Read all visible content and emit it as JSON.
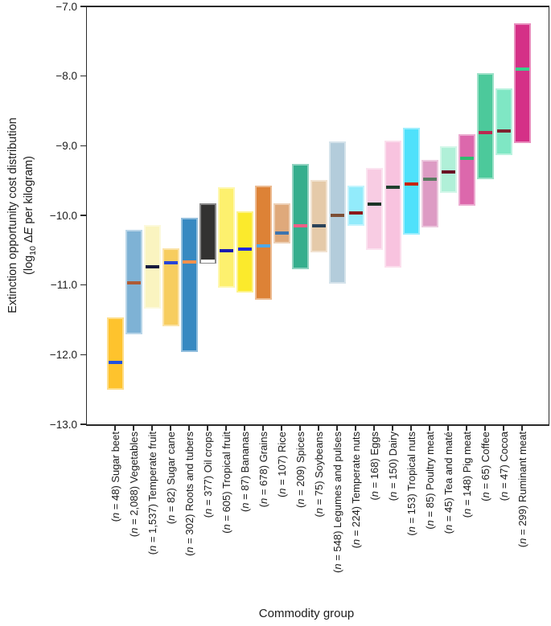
{
  "y_axis": {
    "title_line1": "Extinction opportunity cost distribution",
    "title_line2_segments": [
      {
        "t": "(log"
      },
      {
        "t": "10",
        "style": "sub"
      },
      {
        "t": " Δ"
      },
      {
        "t": "E",
        "style": "italic"
      },
      {
        "t": " per kilogram)"
      }
    ],
    "ticks": [
      {
        "label": "−7.0",
        "value": -7.0
      },
      {
        "label": "−8.0",
        "value": -8.0
      },
      {
        "label": "−9.0",
        "value": -9.0
      },
      {
        "label": "−10.0",
        "value": -10.0
      },
      {
        "label": "−11.0",
        "value": -11.0
      },
      {
        "label": "−12.0",
        "value": -12.0
      },
      {
        "label": "−13.0",
        "value": -13.0
      }
    ]
  },
  "x_axis": {
    "title": "Commodity group"
  },
  "chart_data": {
    "type": "bar",
    "subtype": "floating range bars with median line (distribution summary)",
    "title": "",
    "xlabel": "Commodity group",
    "ylabel": "Extinction opportunity cost distribution (log10 ΔE per kilogram)",
    "ylim": [
      -13.0,
      -7.0
    ],
    "grid": false,
    "legend": false,
    "categories": [
      "(n = 48) Sugar beet",
      "(n = 2,088) Vegetables",
      "(n = 1,537) Temperate fruit",
      "(n = 82) Sugar cane",
      "(n = 302) Roots and tubers",
      "(n = 377) Oil crops",
      "(n = 605) Tropical fruit",
      "(n = 87) Bananas",
      "(n = 678) Grains",
      "(n = 107) Rice",
      "(n = 209) Spices",
      "(n = 75) Soybeans",
      "(n = 548) Legumes and pulses",
      "(n = 224) Temperate nuts",
      "(n = 168) Eggs",
      "(n = 150) Dairy",
      "(n = 153) Tropical nuts",
      "(n = 85) Poultry meat",
      "(n = 45) Tea and maté",
      "(n = 148) Pig meat",
      "(n = 65) Coffee",
      "(n = 47) Cocoa",
      "(n = 299) Ruminant meat"
    ],
    "series": [
      {
        "name": "Sugar beet",
        "n": "48",
        "low": -12.5,
        "high": -11.47,
        "median": -12.11,
        "fill": "#FEC32D",
        "median_color": "#2050E0"
      },
      {
        "name": "Vegetables",
        "n": "2,088",
        "low": -11.71,
        "high": -10.21,
        "median": -10.97,
        "fill": "#7EB2D5",
        "median_color": "#AE5B36"
      },
      {
        "name": "Temperate fruit",
        "n": "1,537",
        "low": -11.34,
        "high": -10.14,
        "median": -10.74,
        "fill": "#FAF4C0",
        "median_color": "#161A3E"
      },
      {
        "name": "Sugar cane",
        "n": "82",
        "low": -11.59,
        "high": -10.47,
        "median": -10.68,
        "fill": "#F7CD5F",
        "median_color": "#2845D6"
      },
      {
        "name": "Roots and tubers",
        "n": "302",
        "low": -11.96,
        "high": -10.03,
        "median": -10.67,
        "fill": "#3789C1",
        "median_color": "#F4914B"
      },
      {
        "name": "Oil crops",
        "n": "377",
        "low": -10.69,
        "high": -9.83,
        "median": -10.66,
        "fill": "#333231",
        "median_color": "#FFFFFF",
        "border_color": "#8A8A8A"
      },
      {
        "name": "Tropical fruit",
        "n": "605",
        "low": -11.04,
        "high": -9.6,
        "median": -10.51,
        "fill": "#FDF06E",
        "median_color": "#1A1CB0"
      },
      {
        "name": "Bananas",
        "n": "87",
        "low": -11.11,
        "high": -9.94,
        "median": -10.49,
        "fill": "#FBEA2C",
        "median_color": "#2028DC"
      },
      {
        "name": "Grains",
        "n": "678",
        "low": -11.21,
        "high": -9.57,
        "median": -10.44,
        "fill": "#DD8236",
        "median_color": "#4FA8E8"
      },
      {
        "name": "Rice",
        "n": "107",
        "low": -10.4,
        "high": -9.83,
        "median": -10.25,
        "fill": "#DFA97B",
        "median_color": "#3E74AE"
      },
      {
        "name": "Spices",
        "n": "209",
        "low": -10.77,
        "high": -9.26,
        "median": -10.15,
        "fill": "#35AE8D",
        "median_color": "#EF5E86"
      },
      {
        "name": "Soybeans",
        "n": "75",
        "low": -10.53,
        "high": -9.49,
        "median": -10.15,
        "fill": "#E5CAA9",
        "median_color": "#2B4258"
      },
      {
        "name": "Legumes and pulses",
        "n": "548",
        "low": -10.98,
        "high": -8.94,
        "median": -10.0,
        "fill": "#B3CCDB",
        "median_color": "#7D4F35"
      },
      {
        "name": "Temperate nuts",
        "n": "224",
        "low": -10.15,
        "high": -9.57,
        "median": -9.96,
        "fill": "#92EBFB",
        "median_color": "#8C1A1A"
      },
      {
        "name": "Eggs",
        "n": "168",
        "low": -10.5,
        "high": -9.32,
        "median": -9.84,
        "fill": "#F8CCE3",
        "median_color": "#1B3326"
      },
      {
        "name": "Dairy",
        "n": "150",
        "low": -10.75,
        "high": -8.93,
        "median": -9.6,
        "fill": "#F8C3DF",
        "median_color": "#21402E"
      },
      {
        "name": "Tropical nuts",
        "n": "153",
        "low": -10.28,
        "high": -8.74,
        "median": -9.55,
        "fill": "#4FE1FB",
        "median_color": "#C62610"
      },
      {
        "name": "Poultry meat",
        "n": "85",
        "low": -10.17,
        "high": -9.2,
        "median": -9.48,
        "fill": "#DD9BC4",
        "median_color": "#5A7A62"
      },
      {
        "name": "Tea and maté",
        "n": "45",
        "low": -9.68,
        "high": -9.01,
        "median": -9.38,
        "fill": "#B0F0D8",
        "median_color": "#6A1224"
      },
      {
        "name": "Pig meat",
        "n": "148",
        "low": -9.86,
        "high": -8.83,
        "median": -9.18,
        "fill": "#DC68AC",
        "median_color": "#2EBB70"
      },
      {
        "name": "Coffee",
        "n": "65",
        "low": -9.48,
        "high": -7.96,
        "median": -8.81,
        "fill": "#4CC99B",
        "median_color": "#BB2850"
      },
      {
        "name": "Cocoa",
        "n": "47",
        "low": -9.13,
        "high": -8.18,
        "median": -8.79,
        "fill": "#7FE7C4",
        "median_color": "#7E2430"
      },
      {
        "name": "Ruminant meat",
        "n": "299",
        "low": -8.96,
        "high": -7.24,
        "median": -7.9,
        "fill": "#D53087",
        "median_color": "#38D18C"
      }
    ]
  }
}
